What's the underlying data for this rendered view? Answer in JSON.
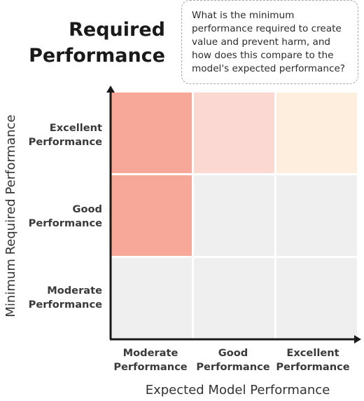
{
  "title": {
    "line1": "Required",
    "line2": "Performance"
  },
  "callout": {
    "text": "What is the minimum performance required to create value and prevent harm, and how does this compare to the model's expected performance?"
  },
  "axes": {
    "x_title": "Expected Model Performance",
    "y_title": "Minimum Required Performance"
  },
  "row_labels": [
    {
      "line1": "Excellent",
      "line2": "Performance"
    },
    {
      "line1": "Good",
      "line2": "Performance"
    },
    {
      "line1": "Moderate",
      "line2": "Performance"
    }
  ],
  "col_labels": [
    {
      "line1": "Moderate",
      "line2": "Performance"
    },
    {
      "line1": "Good",
      "line2": "Performance"
    },
    {
      "line1": "Excellent",
      "line2": "Performance"
    }
  ],
  "colors": {
    "red": "#f8a898",
    "light_red": "#fcd8d2",
    "peach": "#fdeedd",
    "grey": "#efefef",
    "axis": "#1a1a1a"
  },
  "grid_colors": [
    [
      "red",
      "light_red",
      "peach"
    ],
    [
      "red",
      "grey",
      "grey"
    ],
    [
      "grey",
      "grey",
      "grey"
    ]
  ]
}
